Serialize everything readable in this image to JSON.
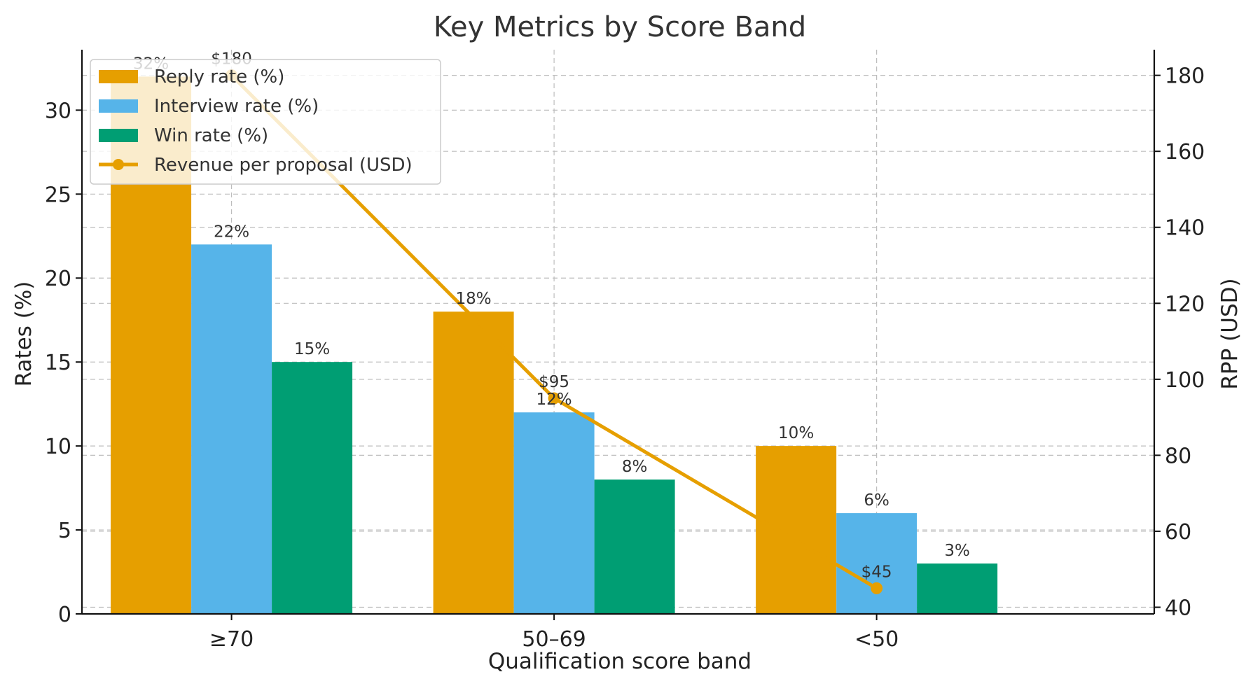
{
  "chart_data": {
    "type": "bar",
    "title": "Key Metrics by Score Band",
    "xlabel": "Qualification score band",
    "ylabel": "Rates (%)",
    "y2label": "RPP (USD)",
    "categories": [
      "≥70",
      "50–69",
      "<50"
    ],
    "ylim": [
      0,
      33.6
    ],
    "y2lim": [
      38.25,
      186.75
    ],
    "yticks": [
      0,
      5,
      10,
      15,
      20,
      25,
      30
    ],
    "y2ticks": [
      40,
      60,
      80,
      100,
      120,
      140,
      160,
      180
    ],
    "grid": true,
    "legend_position": "top-left",
    "series": [
      {
        "name": "Reply rate (%)",
        "kind": "bar",
        "axis": "left",
        "color": "#E69F00",
        "values": [
          32,
          18,
          10
        ],
        "labels": [
          "32%",
          "18%",
          "10%"
        ]
      },
      {
        "name": "Interview rate (%)",
        "kind": "bar",
        "axis": "left",
        "color": "#56B4E9",
        "values": [
          22,
          12,
          6
        ],
        "labels": [
          "22%",
          "12%",
          "6%"
        ]
      },
      {
        "name": "Win rate (%)",
        "kind": "bar",
        "axis": "left",
        "color": "#009E73",
        "values": [
          15,
          8,
          3
        ],
        "labels": [
          "15%",
          "8%",
          "3%"
        ]
      },
      {
        "name": "Revenue per proposal (USD)",
        "kind": "line",
        "axis": "right",
        "color": "#E69F00",
        "values": [
          180,
          95,
          45
        ],
        "labels": [
          "$180",
          "$95",
          "$45"
        ]
      }
    ]
  }
}
